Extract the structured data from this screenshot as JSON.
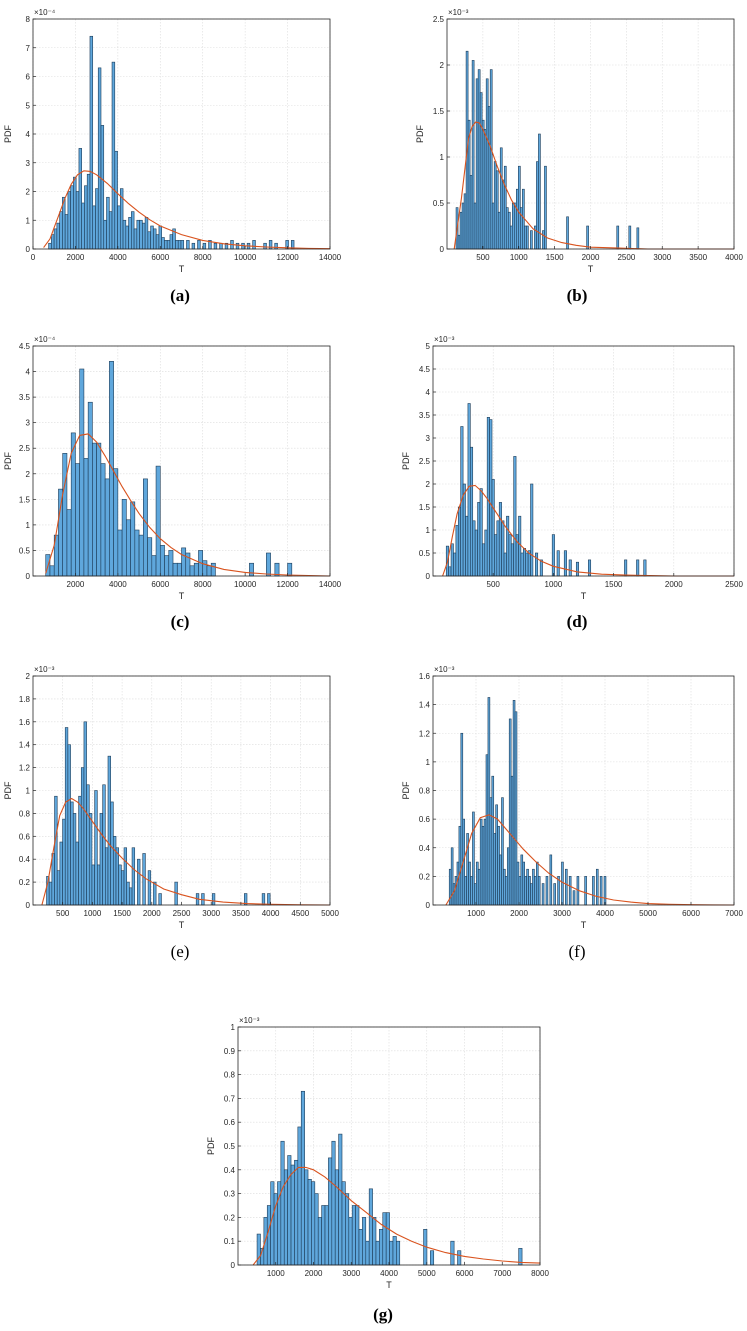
{
  "chart_data": [
    {
      "type": "bar",
      "caption": "(a)",
      "xlabel": "T",
      "ylabel": "PDF",
      "exponent": "×10⁻⁴",
      "xlim": [
        0,
        14000
      ],
      "ylim": [
        0,
        8
      ],
      "xticks": [
        0,
        2000,
        4000,
        6000,
        8000,
        10000,
        12000,
        14000
      ],
      "yticks": [
        0,
        1,
        2,
        3,
        4,
        5,
        6,
        7,
        8
      ],
      "grid": true,
      "bin_width": 130,
      "x": [
        800,
        930,
        1060,
        1190,
        1320,
        1450,
        1580,
        1710,
        1840,
        1970,
        2100,
        2230,
        2360,
        2490,
        2620,
        2750,
        2880,
        3010,
        3140,
        3270,
        3400,
        3530,
        3660,
        3790,
        3920,
        4050,
        4180,
        4310,
        4440,
        4570,
        4700,
        4830,
        4960,
        5090,
        5220,
        5350,
        5480,
        5610,
        5740,
        5870,
        6000,
        6130,
        6260,
        6390,
        6520,
        6650,
        6780,
        6910,
        7040,
        7300,
        7560,
        7820,
        8080,
        8340,
        8600,
        8860,
        9120,
        9380,
        9640,
        9900,
        10160,
        10420,
        10940,
        11200,
        11460,
        11980,
        12240
      ],
      "values": [
        0.2,
        0.5,
        0.7,
        0.9,
        1.3,
        1.8,
        1.2,
        2.0,
        2.2,
        2.5,
        2.0,
        3.5,
        1.6,
        2.2,
        2.6,
        7.4,
        1.5,
        2.1,
        6.3,
        4.3,
        1.0,
        1.8,
        1.3,
        6.5,
        3.4,
        1.5,
        2.1,
        1.0,
        0.8,
        1.1,
        1.3,
        0.7,
        1.0,
        1.0,
        0.9,
        1.1,
        0.6,
        0.8,
        0.7,
        0.5,
        0.8,
        0.4,
        0.3,
        0.3,
        0.5,
        0.7,
        0.3,
        0.3,
        0.3,
        0.3,
        0.2,
        0.3,
        0.2,
        0.3,
        0.2,
        0.2,
        0.2,
        0.3,
        0.2,
        0.2,
        0.2,
        0.3,
        0.2,
        0.3,
        0.2,
        0.3,
        0.3
      ],
      "fit_curve": {
        "x": [
          500,
          800,
          1000,
          1200,
          1500,
          1800,
          2100,
          2400,
          2700,
          3000,
          3500,
          4000,
          4500,
          5000,
          5500,
          6000,
          7000,
          8000,
          9000,
          10000,
          11000,
          12000,
          13000,
          14000
        ],
        "y": [
          0.05,
          0.35,
          0.75,
          1.15,
          1.75,
          2.25,
          2.58,
          2.72,
          2.7,
          2.58,
          2.28,
          1.92,
          1.58,
          1.28,
          1.02,
          0.8,
          0.5,
          0.3,
          0.18,
          0.11,
          0.07,
          0.04,
          0.02,
          0.01
        ]
      }
    },
    {
      "type": "bar",
      "caption": "(b)",
      "xlabel": "T",
      "ylabel": "PDF",
      "exponent": "×10⁻³",
      "xlim": [
        0,
        4000
      ],
      "ylim": [
        0,
        2.5
      ],
      "xticks": [
        500,
        1000,
        1500,
        2000,
        2500,
        3000,
        3500,
        4000
      ],
      "yticks": [
        0,
        0.5,
        1,
        1.5,
        2,
        2.5
      ],
      "grid": true,
      "bin_width": 28,
      "x": [
        140,
        168,
        196,
        224,
        252,
        280,
        308,
        336,
        364,
        392,
        420,
        448,
        476,
        504,
        532,
        560,
        588,
        616,
        644,
        672,
        700,
        728,
        756,
        784,
        812,
        840,
        868,
        896,
        924,
        952,
        980,
        1008,
        1036,
        1064,
        1092,
        1120,
        1176,
        1232,
        1260,
        1288,
        1344,
        1372,
        1680,
        1960,
        2380,
        2548,
        2660
      ],
      "values": [
        0.45,
        0.15,
        0.4,
        0.5,
        0.6,
        2.15,
        1.4,
        0.8,
        2.05,
        0.5,
        1.85,
        1.95,
        1.7,
        1.4,
        1.3,
        1.85,
        1.55,
        1.95,
        0.5,
        0.95,
        0.85,
        0.4,
        1.1,
        0.75,
        0.9,
        0.45,
        0.4,
        0.25,
        0.5,
        0.5,
        0.65,
        0.9,
        0.45,
        0.65,
        0.25,
        0.25,
        0.2,
        0.25,
        0.95,
        1.25,
        0.2,
        0.9,
        0.35,
        0.25,
        0.25,
        0.25,
        0.23
      ],
      "fit_curve": {
        "x": [
          100,
          200,
          300,
          350,
          400,
          450,
          500,
          600,
          700,
          800,
          900,
          1000,
          1200,
          1400,
          1600,
          1800,
          2000,
          2400,
          2800,
          3200,
          3600,
          4000
        ],
        "y": [
          0.0,
          0.55,
          1.2,
          1.33,
          1.38,
          1.37,
          1.3,
          1.12,
          0.9,
          0.7,
          0.53,
          0.4,
          0.22,
          0.12,
          0.07,
          0.04,
          0.02,
          0.01,
          0.0,
          0.0,
          0.0,
          0.0
        ]
      }
    },
    {
      "type": "bar",
      "caption": "(c)",
      "xlabel": "T",
      "ylabel": "PDF",
      "exponent": "×10⁻⁴",
      "xlim": [
        0,
        14000
      ],
      "ylim": [
        0,
        4.5
      ],
      "xticks": [
        2000,
        4000,
        6000,
        8000,
        10000,
        12000,
        14000
      ],
      "yticks": [
        0,
        0.5,
        1,
        1.5,
        2,
        2.5,
        3,
        3.5,
        4,
        4.5
      ],
      "grid": true,
      "bin_width": 200,
      "x": [
        700,
        900,
        1100,
        1300,
        1500,
        1700,
        1900,
        2100,
        2300,
        2500,
        2700,
        2900,
        3100,
        3300,
        3500,
        3700,
        3900,
        4100,
        4300,
        4500,
        4700,
        4900,
        5100,
        5300,
        5500,
        5700,
        5900,
        6100,
        6300,
        6500,
        6700,
        6900,
        7100,
        7300,
        7500,
        7700,
        7900,
        8100,
        8300,
        8500,
        10300,
        11100,
        11500,
        12100
      ],
      "values": [
        0.42,
        0.2,
        0.8,
        1.7,
        2.4,
        1.3,
        2.8,
        2.2,
        4.05,
        2.3,
        3.4,
        2.6,
        2.6,
        2.2,
        1.9,
        4.2,
        2.1,
        0.9,
        1.5,
        1.1,
        1.45,
        0.9,
        0.8,
        1.9,
        0.75,
        0.4,
        2.15,
        0.6,
        0.4,
        0.5,
        0.25,
        0.25,
        0.55,
        0.45,
        0.2,
        0.25,
        0.5,
        0.3,
        0.2,
        0.25,
        0.25,
        0.45,
        0.25,
        0.25
      ],
      "fit_curve": {
        "x": [
          600,
          1000,
          1400,
          1800,
          2200,
          2600,
          3000,
          3400,
          3800,
          4200,
          4600,
          5000,
          5500,
          6000,
          6500,
          7000,
          8000,
          9000,
          10000,
          11000,
          12000,
          13000,
          14000
        ],
        "y": [
          0.05,
          0.6,
          1.6,
          2.4,
          2.75,
          2.78,
          2.62,
          2.35,
          2.05,
          1.75,
          1.48,
          1.22,
          0.95,
          0.73,
          0.56,
          0.42,
          0.24,
          0.13,
          0.07,
          0.04,
          0.02,
          0.01,
          0.0
        ]
      }
    },
    {
      "type": "bar",
      "caption": "(d)",
      "xlabel": "T",
      "ylabel": "PDF",
      "exponent": "×10⁻³",
      "xlim": [
        0,
        2500
      ],
      "ylim": [
        0,
        5
      ],
      "xticks": [
        500,
        1000,
        1500,
        2000,
        2500
      ],
      "yticks": [
        0,
        0.5,
        1,
        1.5,
        2,
        2.5,
        3,
        3.5,
        4,
        4.5,
        5
      ],
      "grid": true,
      "bin_width": 20,
      "x": [
        120,
        140,
        160,
        180,
        200,
        220,
        240,
        260,
        280,
        300,
        320,
        340,
        360,
        380,
        400,
        420,
        440,
        460,
        480,
        500,
        520,
        540,
        560,
        580,
        600,
        620,
        640,
        660,
        680,
        700,
        720,
        740,
        760,
        780,
        800,
        820,
        860,
        900,
        1000,
        1040,
        1100,
        1140,
        1200,
        1300,
        1600,
        1700,
        1760
      ],
      "values": [
        0.65,
        0.2,
        0.7,
        0.5,
        1.1,
        1.5,
        3.25,
        2.0,
        1.3,
        3.75,
        2.8,
        1.2,
        1.0,
        1.6,
        1.9,
        0.7,
        1.0,
        3.45,
        3.4,
        2.1,
        0.9,
        1.2,
        1.6,
        1.2,
        0.5,
        1.3,
        0.9,
        0.7,
        2.6,
        0.9,
        1.3,
        0.5,
        0.6,
        0.5,
        0.55,
        2.0,
        0.5,
        0.35,
        0.9,
        0.55,
        0.55,
        0.35,
        0.3,
        0.35,
        0.35,
        0.35,
        0.35
      ],
      "fit_curve": {
        "x": [
          80,
          120,
          160,
          200,
          250,
          300,
          350,
          400,
          450,
          500,
          550,
          600,
          700,
          800,
          900,
          1000,
          1200,
          1400,
          1600,
          1800,
          2000,
          2250,
          2500
        ],
        "y": [
          0.0,
          0.3,
          0.85,
          1.35,
          1.75,
          1.95,
          1.97,
          1.85,
          1.68,
          1.48,
          1.28,
          1.08,
          0.74,
          0.49,
          0.32,
          0.21,
          0.09,
          0.04,
          0.02,
          0.01,
          0.0,
          0.0,
          0.0
        ]
      }
    },
    {
      "type": "bar",
      "caption": "(e)",
      "xlabel": "T",
      "ylabel": "PDF",
      "exponent": "×10⁻³",
      "xlim": [
        0,
        5000
      ],
      "ylim": [
        0,
        2
      ],
      "xticks": [
        500,
        1000,
        1500,
        2000,
        2500,
        3000,
        3500,
        4000,
        4500,
        5000
      ],
      "yticks": [
        0,
        0.2,
        0.4,
        0.6,
        0.8,
        1,
        1.2,
        1.4,
        1.6,
        1.8,
        2
      ],
      "grid": true,
      "bin_width": 45,
      "x": [
        250,
        295,
        340,
        385,
        430,
        475,
        520,
        565,
        610,
        655,
        700,
        745,
        790,
        835,
        880,
        925,
        970,
        1015,
        1060,
        1105,
        1150,
        1195,
        1240,
        1285,
        1330,
        1375,
        1420,
        1465,
        1510,
        1555,
        1600,
        1645,
        1690,
        1780,
        1870,
        1960,
        2050,
        2140,
        2410,
        2770,
        2860,
        3040,
        3580,
        3880,
        3970
      ],
      "values": [
        0.25,
        0.2,
        0.45,
        0.95,
        0.3,
        0.55,
        0.75,
        1.55,
        1.4,
        0.9,
        0.8,
        0.55,
        0.95,
        1.2,
        1.6,
        1.05,
        0.8,
        0.35,
        1.0,
        0.35,
        0.8,
        1.05,
        0.5,
        1.3,
        0.9,
        0.6,
        0.5,
        0.35,
        0.3,
        0.5,
        0.2,
        0.15,
        0.5,
        0.4,
        0.45,
        0.3,
        0.2,
        0.1,
        0.2,
        0.1,
        0.1,
        0.1,
        0.1,
        0.1,
        0.1
      ],
      "fit_curve": {
        "x": [
          150,
          250,
          350,
          450,
          550,
          650,
          750,
          850,
          1000,
          1150,
          1300,
          1500,
          1700,
          1900,
          2200,
          2500,
          2800,
          3200,
          3600,
          4000,
          4500,
          5000
        ],
        "y": [
          0.0,
          0.2,
          0.5,
          0.78,
          0.9,
          0.93,
          0.9,
          0.84,
          0.73,
          0.62,
          0.52,
          0.41,
          0.31,
          0.23,
          0.14,
          0.09,
          0.05,
          0.025,
          0.012,
          0.006,
          0.002,
          0.0
        ]
      }
    },
    {
      "type": "bar",
      "caption": "(f)",
      "xlabel": "T",
      "ylabel": "PDF",
      "exponent": "×10⁻³",
      "xlim": [
        0,
        7000
      ],
      "ylim": [
        0,
        1.6
      ],
      "xticks": [
        1000,
        2000,
        3000,
        4000,
        5000,
        6000,
        7000
      ],
      "yticks": [
        0,
        0.2,
        0.4,
        0.6,
        0.8,
        1,
        1.2,
        1.4,
        1.6
      ],
      "grid": true,
      "bin_width": 45,
      "x": [
        400,
        445,
        490,
        535,
        580,
        625,
        670,
        715,
        760,
        805,
        850,
        895,
        940,
        985,
        1030,
        1075,
        1120,
        1165,
        1210,
        1255,
        1300,
        1345,
        1390,
        1435,
        1480,
        1525,
        1570,
        1615,
        1660,
        1705,
        1750,
        1795,
        1840,
        1885,
        1930,
        1975,
        2020,
        2065,
        2110,
        2155,
        2200,
        2245,
        2290,
        2335,
        2380,
        2425,
        2470,
        2560,
        2650,
        2740,
        2830,
        2920,
        3010,
        3100,
        3190,
        3280,
        3370,
        3550,
        3730,
        3820,
        3910,
        4000
      ],
      "values": [
        0.25,
        0.4,
        0.15,
        0.2,
        0.3,
        0.55,
        1.2,
        0.6,
        0.2,
        0.5,
        0.3,
        0.2,
        0.65,
        0.15,
        0.3,
        0.25,
        0.6,
        0.55,
        0.6,
        1.05,
        1.45,
        0.75,
        0.9,
        0.5,
        0.7,
        0.55,
        0.35,
        0.75,
        0.25,
        0.2,
        0.4,
        1.3,
        0.9,
        1.43,
        1.35,
        0.3,
        0.2,
        0.35,
        0.3,
        0.2,
        0.25,
        0.2,
        0.15,
        0.25,
        0.2,
        0.3,
        0.2,
        0.15,
        0.2,
        0.35,
        0.15,
        0.2,
        0.3,
        0.25,
        0.2,
        0.1,
        0.2,
        0.2,
        0.2,
        0.25,
        0.2,
        0.2
      ],
      "fit_curve": {
        "x": [
          300,
          500,
          700,
          900,
          1100,
          1300,
          1500,
          1700,
          1900,
          2100,
          2400,
          2700,
          3000,
          3400,
          3800,
          4200,
          4600,
          5000,
          5500,
          6000,
          6500,
          7000
        ],
        "y": [
          0.0,
          0.1,
          0.3,
          0.5,
          0.61,
          0.63,
          0.6,
          0.53,
          0.46,
          0.39,
          0.3,
          0.22,
          0.16,
          0.1,
          0.06,
          0.035,
          0.02,
          0.01,
          0.005,
          0.002,
          0.001,
          0.0
        ]
      }
    },
    {
      "type": "bar",
      "caption": "(g)",
      "xlabel": "T",
      "ylabel": "PDF",
      "exponent": "×10⁻³",
      "xlim": [
        0,
        8000
      ],
      "ylim": [
        0,
        1
      ],
      "xticks": [
        1000,
        2000,
        3000,
        4000,
        5000,
        6000,
        7000,
        8000
      ],
      "yticks": [
        0,
        0.1,
        0.2,
        0.3,
        0.4,
        0.5,
        0.6,
        0.7,
        0.8,
        0.9,
        1
      ],
      "grid": true,
      "bin_width": 90,
      "x": [
        550,
        640,
        730,
        820,
        910,
        1000,
        1090,
        1180,
        1270,
        1360,
        1450,
        1540,
        1630,
        1720,
        1810,
        1900,
        1990,
        2080,
        2170,
        2260,
        2350,
        2440,
        2530,
        2620,
        2710,
        2800,
        2890,
        2980,
        3070,
        3160,
        3250,
        3340,
        3430,
        3520,
        3610,
        3700,
        3790,
        3880,
        3970,
        4060,
        4150,
        4240,
        4960,
        5140,
        5680,
        5860,
        7480
      ],
      "values": [
        0.13,
        0.07,
        0.2,
        0.25,
        0.35,
        0.3,
        0.35,
        0.52,
        0.4,
        0.46,
        0.42,
        0.44,
        0.58,
        0.73,
        0.4,
        0.36,
        0.35,
        0.3,
        0.2,
        0.25,
        0.25,
        0.45,
        0.52,
        0.4,
        0.55,
        0.35,
        0.3,
        0.2,
        0.25,
        0.25,
        0.15,
        0.2,
        0.1,
        0.32,
        0.2,
        0.1,
        0.15,
        0.22,
        0.22,
        0.1,
        0.12,
        0.1,
        0.15,
        0.06,
        0.1,
        0.06,
        0.07
      ],
      "fit_curve": {
        "x": [
          400,
          600,
          800,
          1000,
          1200,
          1400,
          1600,
          1800,
          2000,
          2300,
          2600,
          3000,
          3400,
          3800,
          4200,
          4600,
          5000,
          5500,
          6000,
          6500,
          7000,
          7500,
          8000
        ],
        "y": [
          0.0,
          0.04,
          0.14,
          0.25,
          0.33,
          0.38,
          0.41,
          0.41,
          0.4,
          0.37,
          0.33,
          0.27,
          0.22,
          0.17,
          0.13,
          0.1,
          0.075,
          0.052,
          0.036,
          0.025,
          0.017,
          0.011,
          0.008
        ]
      }
    }
  ]
}
